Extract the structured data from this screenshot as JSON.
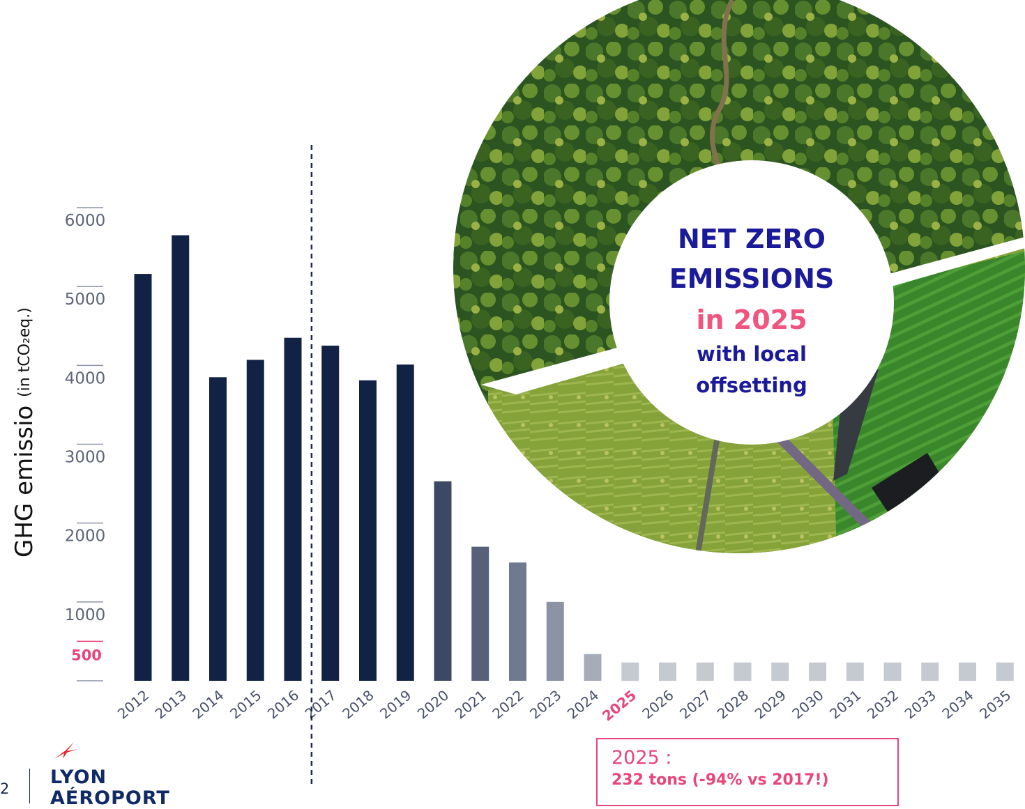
{
  "chart_data": {
    "type": "bar",
    "title": "",
    "ylabel": "GHG emissio",
    "ylabel_unit": "(in tCO₂eq.)",
    "xlabel": "",
    "ylim": [
      0,
      6000
    ],
    "yticks": [
      1000,
      2000,
      3000,
      4000,
      5000,
      6000
    ],
    "ytick_labels": [
      "1000",
      "2000",
      "3000",
      "4000",
      "5000",
      "6000"
    ],
    "highlight_ytick": {
      "value": 500,
      "label": "500"
    },
    "categories": [
      "2012",
      "2013",
      "2014",
      "2015",
      "2016",
      "2017",
      "2018",
      "2019",
      "2020",
      "2021",
      "2022",
      "2023",
      "2024",
      "2025",
      "2026",
      "2027",
      "2028",
      "2029",
      "2030",
      "2031",
      "2032",
      "2033",
      "2034",
      "2035"
    ],
    "values": [
      5160,
      5650,
      3850,
      4070,
      4350,
      4250,
      3810,
      4010,
      2530,
      1700,
      1500,
      1000,
      340,
      232,
      232,
      232,
      232,
      232,
      232,
      232,
      232,
      232,
      232,
      232
    ],
    "highlight_category": "2025",
    "bar_colors": [
      "#122245",
      "#122245",
      "#122245",
      "#122245",
      "#122245",
      "#122245",
      "#122245",
      "#122245",
      "#3d4964",
      "#566078",
      "#6f798f",
      "#8b93a5",
      "#a6adb9",
      "#c5c9d0",
      "#c5c9d0",
      "#c5c9d0",
      "#c5c9d0",
      "#c5c9d0",
      "#c5c9d0",
      "#c5c9d0",
      "#c5c9d0",
      "#c5c9d0",
      "#c5c9d0",
      "#c5c9d0"
    ],
    "reference_line": {
      "between": [
        "2016",
        "2017"
      ],
      "style": "dashed"
    },
    "grid": false,
    "legend": "none"
  },
  "disc": {
    "line1": "NET ZERO",
    "line2": "EMISSIONS",
    "line3": "in 2025",
    "line4": "with local",
    "line5": "offsetting"
  },
  "callout": {
    "title": "2025 :",
    "text": "232 tons (-94% vs 2017!)"
  },
  "footer": {
    "page_number": "2",
    "logo_line1": "LYON",
    "logo_line2": "AÉROPORT"
  },
  "colors": {
    "accent_pink": "#e8457a",
    "navy": "#122245",
    "disc_blue": "#1b1a9a"
  },
  "icons": {
    "logo": "red-airplane-star-icon",
    "background": "aerial-forest-field-photo"
  }
}
